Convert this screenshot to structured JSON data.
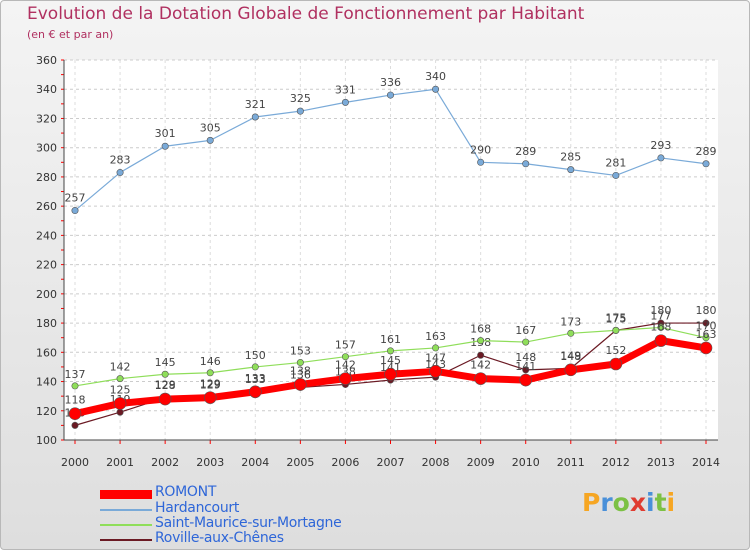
{
  "title": "Evolution de la Dotation Globale de Fonctionnement par Habitant",
  "subtitle": "(en € et par an)",
  "logo": {
    "text": "Proxiti",
    "letters": [
      "P",
      "r",
      "o",
      "x",
      "i",
      "t",
      "i"
    ],
    "colors": [
      "#f6a623",
      "#4a90d9",
      "#7cc144",
      "#e03c31",
      "#4a90d9",
      "#7cc144",
      "#f6a623"
    ]
  },
  "chart_data": {
    "type": "line",
    "title": "Evolution de la Dotation Globale de Fonctionnement par Habitant",
    "ylabel": "(en € et par an)",
    "x": [
      2000,
      2001,
      2002,
      2003,
      2004,
      2005,
      2006,
      2007,
      2008,
      2009,
      2010,
      2011,
      2012,
      2013,
      2014
    ],
    "ylim": [
      100,
      360
    ],
    "yticks": [
      100,
      120,
      140,
      160,
      180,
      200,
      220,
      240,
      260,
      280,
      300,
      320,
      340,
      360
    ],
    "grid": true,
    "series": [
      {
        "name": "Roville-aux-Chênes",
        "color": "#6b1a24",
        "values": [
          110,
          119,
          129,
          129,
          133,
          136,
          138,
          141,
          143,
          158,
          148,
          149,
          175,
          180,
          180
        ]
      },
      {
        "name": "Saint-Maurice-sur-Mortagne",
        "color": "#8fde5a",
        "values": [
          137,
          142,
          145,
          146,
          150,
          153,
          157,
          161,
          163,
          168,
          167,
          173,
          175,
          177,
          170
        ]
      },
      {
        "name": "Hardancourt",
        "color": "#7aaad8",
        "values": [
          257,
          283,
          301,
          305,
          321,
          325,
          331,
          336,
          340,
          290,
          289,
          285,
          281,
          293,
          289
        ]
      },
      {
        "name": "ROMONT",
        "color": "#ff0000",
        "values": [
          118,
          125,
          128,
          129,
          133,
          138,
          142,
          145,
          147,
          142,
          141,
          148,
          152,
          168,
          163
        ]
      }
    ],
    "legend": [
      "ROMONT",
      "Hardancourt",
      "Saint-Maurice-sur-Mortagne",
      "Roville-aux-Chênes"
    ]
  }
}
